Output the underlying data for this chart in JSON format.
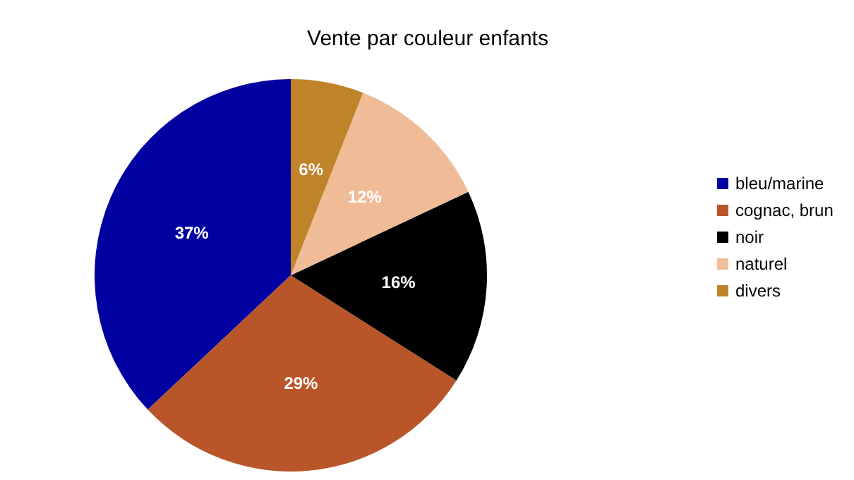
{
  "chart_data": {
    "type": "pie",
    "title": "Vente par couleur enfants",
    "categories": [
      "bleu/marine",
      "cognac, brun",
      "noir",
      "naturel",
      "divers"
    ],
    "values": [
      37,
      29,
      16,
      12,
      6
    ],
    "colors": [
      "#0000a0",
      "#b8562a",
      "#000000",
      "#f0bc98",
      "#c0832a"
    ],
    "value_labels": [
      "37%",
      "29%",
      "16%",
      "12%",
      "6%"
    ],
    "legend": "right"
  }
}
